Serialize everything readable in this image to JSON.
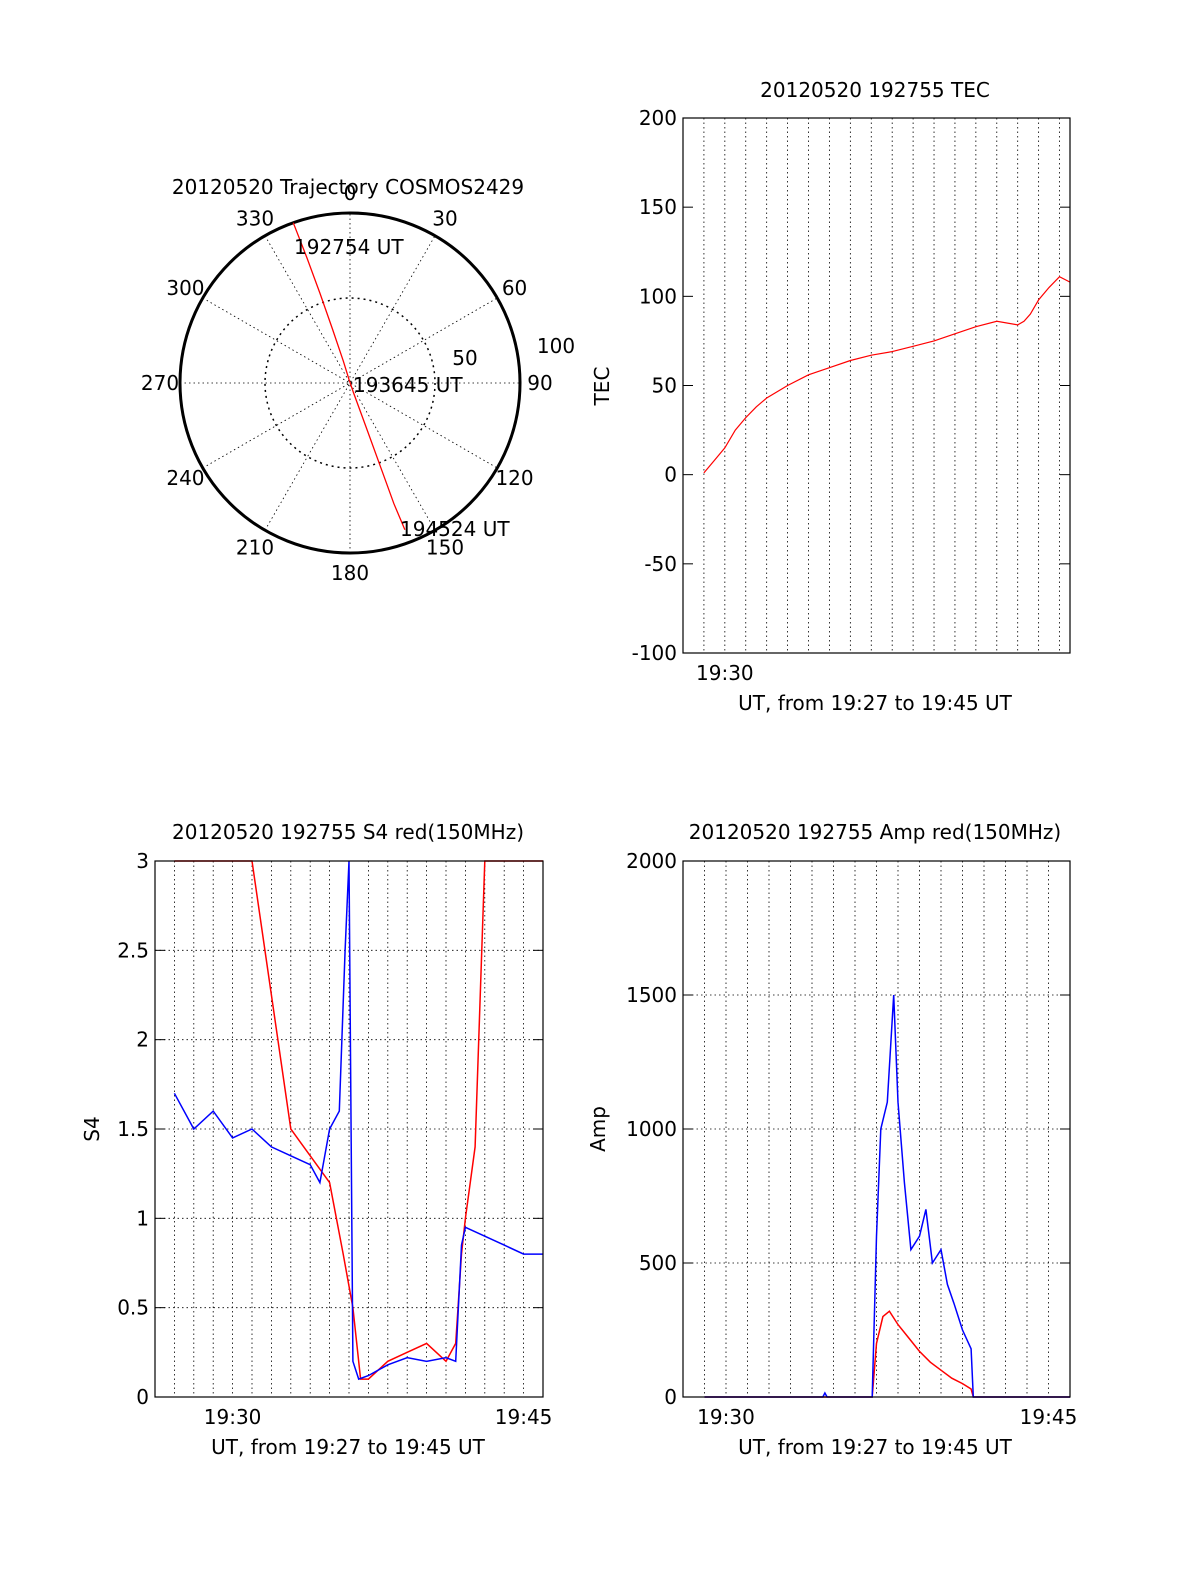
{
  "colors": {
    "red": "#ff0000",
    "blue": "#0000ff",
    "axis": "#000000"
  },
  "chart_data": [
    {
      "type": "polar",
      "title": "20120520 Trajectory COSMOS2429",
      "azimuth_labels": [
        "0",
        "30",
        "60",
        "90",
        "120",
        "150",
        "180",
        "210",
        "240",
        "270",
        "300",
        "330"
      ],
      "radial_labels": [
        "50",
        "100"
      ],
      "start_label": "192754 UT",
      "mid_label": "193645 UT",
      "end_label": "194524 UT",
      "track": [
        {
          "az": 340.5,
          "zen": 90
        },
        {
          "az": 341,
          "zen": 70
        },
        {
          "az": 341.5,
          "zen": 50
        },
        {
          "az": 342,
          "zen": 30
        },
        {
          "az": 343,
          "zen": 12
        },
        {
          "az": 345,
          "zen": 2
        },
        {
          "az": 160,
          "zen": 5
        },
        {
          "az": 160,
          "zen": 25
        },
        {
          "az": 160,
          "zen": 50
        },
        {
          "az": 160,
          "zen": 68
        },
        {
          "az": 159.5,
          "zen": 83
        }
      ],
      "color": "#ff0000"
    },
    {
      "type": "line",
      "title": "20120520 192755 TEC",
      "ylabel": "TEC",
      "xlabel": "UT, from 19:27 to 19:45 UT",
      "xticklabels": [
        {
          "t": 30,
          "label": "19:30"
        }
      ],
      "xlim": [
        28.0,
        46.5
      ],
      "ylim": [
        -100,
        200
      ],
      "yticks": [
        -100,
        -50,
        0,
        50,
        100,
        150,
        200
      ],
      "color": "#ff0000",
      "series": [
        {
          "x": [
            29.0,
            29.5,
            30.0,
            30.5,
            31.0,
            31.5,
            32.0,
            33.0,
            34.0,
            35.0,
            36.0,
            37.0,
            38.0,
            39.0,
            40.0,
            41.0,
            42.0,
            43.0,
            44.0,
            44.3,
            44.6,
            45.0,
            45.5,
            46.0,
            46.5
          ],
          "y": [
            1,
            8,
            15,
            25,
            32,
            38,
            43,
            50,
            56,
            60,
            64,
            67,
            69,
            72,
            75,
            79,
            83,
            86,
            84,
            86,
            90,
            98,
            105,
            111,
            108
          ]
        }
      ]
    },
    {
      "type": "line",
      "title": "20120520 192755 S4 red(150MHz)",
      "ylabel": "S4",
      "xlabel": "UT, from 19:27 to 19:45 UT",
      "xticklabels": [
        {
          "t": 30,
          "label": "19:30"
        },
        {
          "t": 45,
          "label": "19:45"
        }
      ],
      "xlim": [
        26.0,
        46.0
      ],
      "ylim": [
        0,
        3
      ],
      "yticks": [
        0,
        0.5,
        1,
        1.5,
        2,
        2.5,
        3
      ],
      "series": [
        {
          "name": "",
          "color": "#ff0000",
          "x": [
            27,
            29,
            31,
            33,
            35,
            35.7,
            36.2,
            36.6,
            37.0,
            37.5,
            38,
            39,
            40,
            41,
            41.5,
            41.8,
            42,
            42.5,
            43,
            44,
            45,
            46
          ],
          "y": [
            3.0,
            3.0,
            3.0,
            1.5,
            1.2,
            0.8,
            0.5,
            0.1,
            0.1,
            0.15,
            0.2,
            0.25,
            0.3,
            0.2,
            0.3,
            0.8,
            1.0,
            1.4,
            3.0,
            3.0,
            3.0,
            3.0
          ]
        },
        {
          "name": "",
          "color": "#0000ff",
          "x": [
            27,
            28,
            29,
            30,
            31,
            32,
            33,
            34,
            34.5,
            35,
            35.5,
            35.8,
            36.0,
            36.2,
            36.5,
            37,
            38,
            39,
            40,
            41,
            41.5,
            41.8,
            42,
            43,
            44,
            45,
            46
          ],
          "y": [
            1.7,
            1.5,
            1.6,
            1.45,
            1.5,
            1.4,
            1.35,
            1.3,
            1.2,
            1.5,
            1.6,
            2.5,
            3.0,
            0.2,
            0.1,
            0.12,
            0.18,
            0.22,
            0.2,
            0.22,
            0.2,
            0.85,
            0.95,
            0.9,
            0.85,
            0.8,
            0.8
          ]
        }
      ]
    },
    {
      "type": "line",
      "title": "20120520 192755 Amp red(150MHz)",
      "ylabel": "Amp",
      "xlabel": "UT, from 19:27 to 19:45 UT",
      "xticklabels": [
        {
          "t": 30,
          "label": "19:30"
        },
        {
          "t": 45,
          "label": "19:45"
        }
      ],
      "xlim": [
        28.0,
        46.0
      ],
      "ylim": [
        0,
        2000
      ],
      "yticks": [
        0,
        500,
        1000,
        1500,
        2000
      ],
      "series": [
        {
          "name": "",
          "color": "#ff0000",
          "x": [
            29,
            36.8,
            37.0,
            37.3,
            37.6,
            38.0,
            38.5,
            39.0,
            39.5,
            40.0,
            40.5,
            41.0,
            41.4,
            41.5,
            46
          ],
          "y": [
            0,
            0,
            200,
            300,
            320,
            270,
            220,
            170,
            130,
            100,
            70,
            50,
            30,
            0,
            0
          ]
        },
        {
          "name": "",
          "color": "#0000ff",
          "x": [
            29,
            34.5,
            34.6,
            34.7,
            36.8,
            37.0,
            37.2,
            37.5,
            37.8,
            38.0,
            38.3,
            38.6,
            39.0,
            39.3,
            39.6,
            40.0,
            40.3,
            40.6,
            41.0,
            41.4,
            41.5,
            46
          ],
          "y": [
            0,
            0,
            15,
            0,
            0,
            600,
            1000,
            1100,
            1500,
            1100,
            800,
            550,
            600,
            700,
            500,
            550,
            420,
            350,
            250,
            180,
            0,
            0
          ]
        }
      ]
    }
  ]
}
